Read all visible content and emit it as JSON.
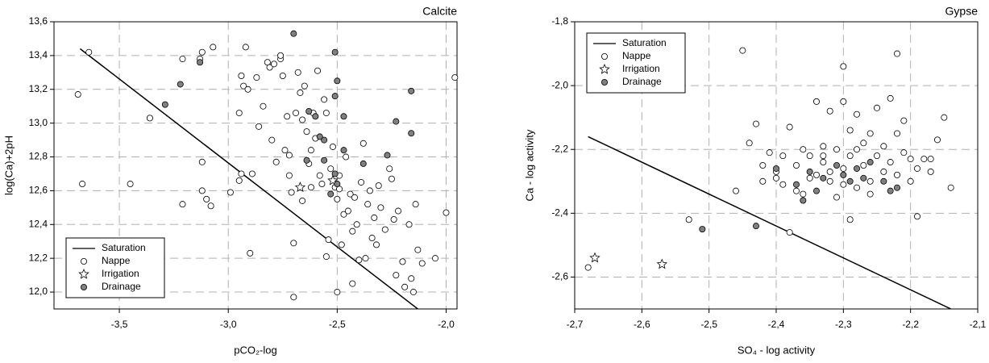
{
  "chart_data": [
    {
      "type": "scatter",
      "title": "Calcite",
      "x_label": "pCO₂-log",
      "y_label": "log(Ca)+2pH",
      "xlim": [
        -3.8,
        -1.95
      ],
      "ylim": [
        11.9,
        13.6
      ],
      "grid": true,
      "legend": "lower left",
      "xticks": [
        {
          "value": -3.5,
          "label": "-3,5"
        },
        {
          "value": -3.0,
          "label": "-3,0"
        },
        {
          "value": -2.5,
          "label": "-2,5"
        },
        {
          "value": -2.0,
          "label": "-2,0"
        }
      ],
      "yticks": [
        {
          "value": 12.0,
          "label": "12,0"
        },
        {
          "value": 12.2,
          "label": "12,2"
        },
        {
          "value": 12.4,
          "label": "12,4"
        },
        {
          "value": 12.6,
          "label": "12,6"
        },
        {
          "value": 12.8,
          "label": "12,8"
        },
        {
          "value": 13.0,
          "label": "13,0"
        },
        {
          "value": 13.2,
          "label": "13,2"
        },
        {
          "value": 13.4,
          "label": "13,4"
        },
        {
          "value": 13.6,
          "label": "13,6"
        }
      ],
      "series": [
        {
          "name": "Saturation",
          "marker": "line",
          "color": "#000000",
          "x": [
            -3.68,
            -2.13
          ],
          "values": [
            13.44,
            11.9
          ]
        },
        {
          "name": "Nappe",
          "marker": "circle",
          "color": "#ffffff",
          "x": [
            -3.69,
            -3.64,
            -3.67,
            -3.45,
            -3.36,
            -3.21,
            -3.21,
            -3.13,
            -3.12,
            -3.12,
            -3.12,
            -3.1,
            -3.08,
            -3.07,
            -2.99,
            -2.95,
            -2.94,
            -2.94,
            -2.93,
            -2.92,
            -2.91,
            -2.9,
            -2.89,
            -2.87,
            -2.86,
            -2.84,
            -2.82,
            -2.81,
            -2.8,
            -2.79,
            -2.78,
            -2.76,
            -2.76,
            -2.75,
            -2.74,
            -2.73,
            -2.72,
            -2.71,
            -2.7,
            -2.7,
            -2.69,
            -2.68,
            -2.67,
            -2.66,
            -2.66,
            -2.65,
            -2.64,
            -2.63,
            -2.62,
            -2.61,
            -2.6,
            -2.59,
            -2.58,
            -2.57,
            -2.56,
            -2.55,
            -2.54,
            -2.53,
            -2.52,
            -2.51,
            -2.5,
            -2.5,
            -2.49,
            -2.48,
            -2.47,
            -2.46,
            -2.45,
            -2.44,
            -2.43,
            -2.42,
            -2.41,
            -2.4,
            -2.39,
            -2.38,
            -2.37,
            -2.36,
            -2.35,
            -2.34,
            -2.33,
            -2.32,
            -2.31,
            -2.3,
            -2.28,
            -2.26,
            -2.25,
            -2.24,
            -2.23,
            -2.22,
            -2.2,
            -2.19,
            -2.17,
            -2.16,
            -2.15,
            -2.14,
            -2.13,
            -2.11,
            -2.05,
            -2.0,
            -1.96,
            -2.43,
            -2.55,
            -2.95,
            -2.72,
            -2.62,
            -2.49
          ],
          "values": [
            13.17,
            13.42,
            12.64,
            12.64,
            13.03,
            13.38,
            12.52,
            13.38,
            13.42,
            12.77,
            12.6,
            12.55,
            12.51,
            13.45,
            12.59,
            12.66,
            12.7,
            13.28,
            13.22,
            13.45,
            13.2,
            12.23,
            12.7,
            13.27,
            12.98,
            13.1,
            13.36,
            13.33,
            12.9,
            13.35,
            12.77,
            13.38,
            13.4,
            13.28,
            12.84,
            13.04,
            12.69,
            12.59,
            12.29,
            11.97,
            13.06,
            13.3,
            13.18,
            13.02,
            12.54,
            13.22,
            12.95,
            12.76,
            12.84,
            13.06,
            12.91,
            13.31,
            12.69,
            12.64,
            13.14,
            12.21,
            12.31,
            12.73,
            12.86,
            12.62,
            12.0,
            12.55,
            12.61,
            12.28,
            12.46,
            12.8,
            12.48,
            12.58,
            12.36,
            12.56,
            12.4,
            12.19,
            12.65,
            12.88,
            12.2,
            12.52,
            12.6,
            12.32,
            12.44,
            12.28,
            12.63,
            12.5,
            12.37,
            12.73,
            12.67,
            12.43,
            12.1,
            12.48,
            12.18,
            12.03,
            12.4,
            12.08,
            12.0,
            12.52,
            12.25,
            12.17,
            12.2,
            12.47,
            13.27,
            12.05,
            13.06,
            13.06,
            12.81,
            12.62,
            12.69
          ]
        },
        {
          "name": "Irrigation",
          "marker": "star",
          "color": "#ffffff",
          "x": [
            -2.67,
            -2.52
          ],
          "values": [
            12.62,
            12.66
          ]
        },
        {
          "name": "Drainage",
          "marker": "circle",
          "color": "#808080",
          "x": [
            -3.22,
            -3.29,
            -3.13,
            -2.7,
            -2.51,
            -2.5,
            -2.51,
            -2.63,
            -2.6,
            -2.47,
            -2.56,
            -2.56,
            -2.47,
            -2.51,
            -2.53,
            -2.5,
            -2.38,
            -2.27,
            -2.23,
            -2.16,
            -2.16,
            -2.64,
            -2.58
          ],
          "values": [
            13.23,
            13.11,
            13.36,
            13.53,
            13.42,
            13.25,
            13.16,
            13.07,
            13.04,
            13.04,
            12.9,
            12.78,
            12.84,
            12.7,
            12.58,
            12.64,
            12.76,
            12.81,
            13.01,
            12.94,
            13.19,
            12.78,
            12.92
          ]
        }
      ]
    },
    {
      "type": "scatter",
      "title": "Gypse",
      "x_label": "SO₄ - log activity",
      "y_label": "Ca - log activity",
      "xlim": [
        -2.7,
        -2.1
      ],
      "ylim": [
        -2.7,
        -1.8
      ],
      "grid": true,
      "legend": "upper left",
      "xticks": [
        {
          "value": -2.7,
          "label": "-2,7"
        },
        {
          "value": -2.6,
          "label": "-2,6"
        },
        {
          "value": -2.5,
          "label": "-2,5"
        },
        {
          "value": -2.4,
          "label": "-2,4"
        },
        {
          "value": -2.3,
          "label": "-2,3"
        },
        {
          "value": -2.2,
          "label": "-2,2"
        },
        {
          "value": -2.1,
          "label": "-2,1"
        }
      ],
      "yticks": [
        {
          "value": -2.6,
          "label": "-2,6"
        },
        {
          "value": -2.4,
          "label": "-2,4"
        },
        {
          "value": -2.2,
          "label": "-2,2"
        },
        {
          "value": -2.0,
          "label": "-2,0"
        },
        {
          "value": -1.8,
          "label": "-1,8"
        }
      ],
      "series": [
        {
          "name": "Saturation",
          "marker": "line",
          "color": "#000000",
          "x": [
            -2.68,
            -2.14
          ],
          "values": [
            -2.16,
            -2.7
          ]
        },
        {
          "name": "Nappe",
          "marker": "circle",
          "color": "#ffffff",
          "x": [
            -2.44,
            -2.43,
            -2.42,
            -2.42,
            -2.4,
            -2.39,
            -2.39,
            -2.38,
            -2.37,
            -2.36,
            -2.35,
            -2.35,
            -2.34,
            -2.34,
            -2.33,
            -2.33,
            -2.32,
            -2.32,
            -2.31,
            -2.31,
            -2.3,
            -2.3,
            -2.29,
            -2.29,
            -2.28,
            -2.28,
            -2.27,
            -2.27,
            -2.26,
            -2.26,
            -2.25,
            -2.25,
            -2.24,
            -2.24,
            -2.23,
            -2.23,
            -2.22,
            -2.22,
            -2.21,
            -2.21,
            -2.2,
            -2.2,
            -2.19,
            -2.18,
            -2.17,
            -2.16,
            -2.4,
            -2.37,
            -2.28,
            -2.32,
            -2.36,
            -2.3,
            -2.26,
            -2.33,
            -2.41,
            -2.45,
            -2.3,
            -2.22,
            -2.68,
            -2.53,
            -2.46,
            -2.38,
            -2.29,
            -2.19,
            -2.15,
            -2.14,
            -2.17
          ],
          "values": [
            -2.18,
            -2.12,
            -2.25,
            -2.3,
            -2.29,
            -2.22,
            -2.31,
            -2.13,
            -2.25,
            -2.2,
            -2.29,
            -2.22,
            -2.28,
            -2.05,
            -2.19,
            -2.24,
            -2.08,
            -2.3,
            -2.2,
            -2.35,
            -2.05,
            -2.26,
            -2.14,
            -2.22,
            -2.09,
            -2.32,
            -2.18,
            -2.25,
            -2.3,
            -2.15,
            -2.22,
            -2.07,
            -2.19,
            -2.27,
            -2.04,
            -2.24,
            -2.15,
            -2.28,
            -2.21,
            -2.11,
            -2.23,
            -2.3,
            -2.26,
            -2.23,
            -2.23,
            -2.17,
            -2.27,
            -2.33,
            -2.2,
            -2.27,
            -2.34,
            -2.31,
            -2.34,
            -2.22,
            -2.21,
            -1.89,
            -1.94,
            -1.9,
            -2.57,
            -2.42,
            -2.33,
            -2.46,
            -2.42,
            -2.41,
            -2.1,
            -2.32,
            -2.27
          ]
        },
        {
          "name": "Irrigation",
          "marker": "star",
          "color": "#ffffff",
          "x": [
            -2.67,
            -2.57
          ],
          "values": [
            -2.54,
            -2.56
          ]
        },
        {
          "name": "Drainage",
          "marker": "circle",
          "color": "#808080",
          "x": [
            -2.51,
            -2.43,
            -2.4,
            -2.37,
            -2.35,
            -2.34,
            -2.33,
            -2.3,
            -2.29,
            -2.28,
            -2.27,
            -2.26,
            -2.24,
            -2.23,
            -2.22,
            -2.31,
            -2.36
          ],
          "values": [
            -2.45,
            -2.44,
            -2.26,
            -2.31,
            -2.27,
            -2.33,
            -2.29,
            -2.28,
            -2.3,
            -2.26,
            -2.29,
            -2.24,
            -2.3,
            -2.33,
            -2.32,
            -2.25,
            -2.36
          ]
        }
      ]
    }
  ]
}
